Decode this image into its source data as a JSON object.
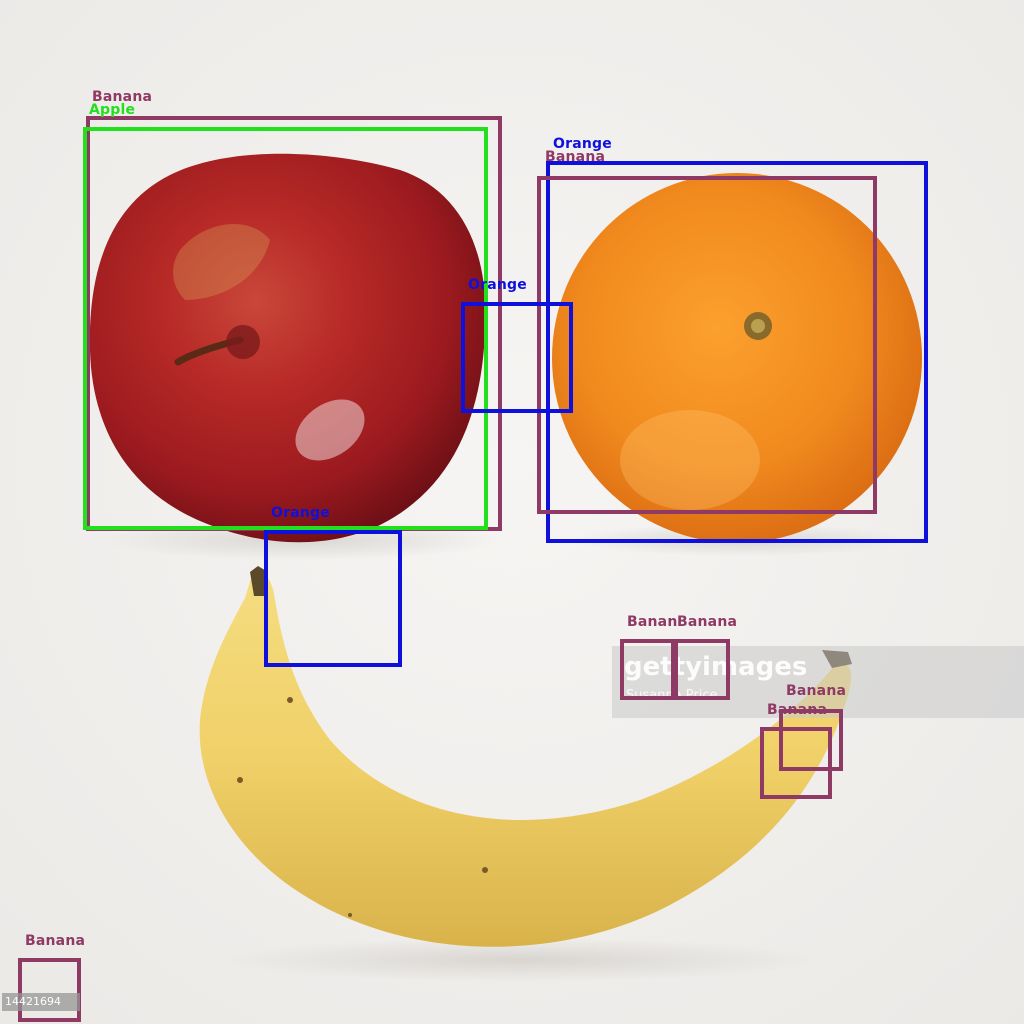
{
  "colors": {
    "background": "#f1f0ee",
    "banana": "#8e3a64",
    "apple": "#22e01c",
    "orange": "#1010dd"
  },
  "detections": [
    {
      "label": "Banana",
      "class": "banana"
    },
    {
      "label": "Apple",
      "class": "apple"
    },
    {
      "label": "Orange",
      "class": "orange"
    },
    {
      "label": "Banana",
      "class": "banana"
    },
    {
      "label": "Orange",
      "class": "orange"
    },
    {
      "label": "Orange",
      "class": "orange"
    },
    {
      "label": "Banan",
      "class": "banana"
    },
    {
      "label": "Banana",
      "class": "banana"
    },
    {
      "label": "Banana",
      "class": "banana"
    },
    {
      "label": "Banana",
      "class": "banana"
    },
    {
      "label": "Banana",
      "class": "banana"
    }
  ],
  "watermark": {
    "logo": "gettyimages",
    "credit": "Susanna Price"
  },
  "image_id": "14421694"
}
